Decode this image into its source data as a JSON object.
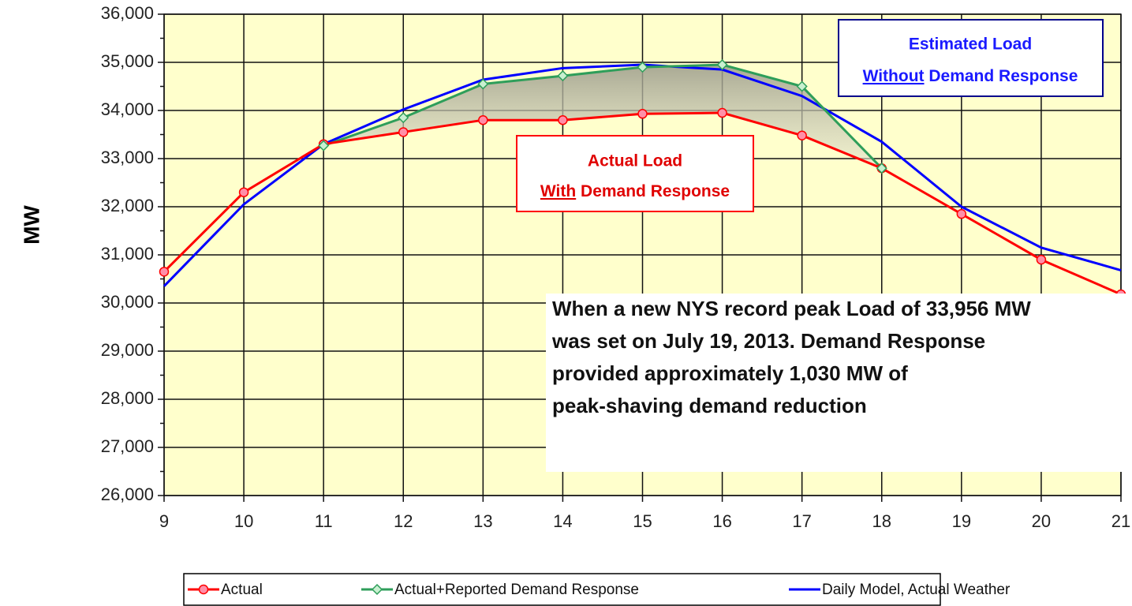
{
  "chart_data": {
    "type": "line",
    "y_label": "MW",
    "x": [
      9,
      10,
      11,
      12,
      13,
      14,
      15,
      16,
      17,
      18,
      19,
      20,
      21
    ],
    "xlim": [
      9,
      21
    ],
    "xticks": [
      9,
      10,
      11,
      12,
      13,
      14,
      15,
      16,
      17,
      18,
      19,
      20,
      21
    ],
    "ylim": [
      26000,
      36000
    ],
    "yticks": [
      {
        "value": 26000,
        "label": "26,000"
      },
      {
        "value": 27000,
        "label": "27,000"
      },
      {
        "value": 28000,
        "label": "28,000"
      },
      {
        "value": 29000,
        "label": "29,000"
      },
      {
        "value": 30000,
        "label": "30,000"
      },
      {
        "value": 31000,
        "label": "31,000"
      },
      {
        "value": 32000,
        "label": "32,000"
      },
      {
        "value": 33000,
        "label": "33,000"
      },
      {
        "value": 34000,
        "label": "34,000"
      },
      {
        "value": 35000,
        "label": "35,000"
      },
      {
        "value": 36000,
        "label": "36,000"
      }
    ],
    "grid": true,
    "series": [
      {
        "name": "Actual",
        "color": "#ff0000",
        "marker": "circle",
        "values": [
          30650,
          32300,
          33300,
          33550,
          33800,
          33800,
          33930,
          33950,
          33480,
          32800,
          31850,
          30900,
          30180
        ]
      },
      {
        "name": "Actual+Reported Demand Response",
        "color": "#2e9e5a",
        "marker": "diamond",
        "values": [
          null,
          null,
          33270,
          33850,
          34550,
          34720,
          34900,
          34950,
          34500,
          32800,
          null,
          null,
          null
        ]
      },
      {
        "name": "Daily Model, Actual Weather",
        "color": "#0000ff",
        "marker": null,
        "values": [
          30350,
          32050,
          33300,
          34020,
          34640,
          34880,
          34950,
          34850,
          34300,
          33350,
          32000,
          31150,
          30680
        ]
      }
    ],
    "annotations": [
      {
        "line1": "Estimated Load",
        "underlined": "Without",
        "rest": " Demand Response"
      },
      {
        "line1": "Actual Load",
        "underlined": "With",
        "rest": " Demand Response"
      }
    ],
    "note": [
      "When a new NYS record peak Load of 33,956 MW",
      "was set on July 19, 2013. Demand Response",
      "provided approximately 1,030 MW of",
      "peak-shaving demand reduction"
    ]
  }
}
